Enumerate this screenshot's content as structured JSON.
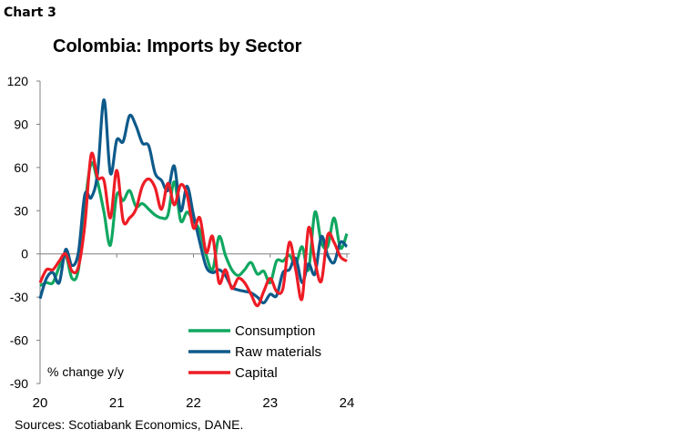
{
  "header": {
    "chart_label": "Chart 3"
  },
  "footer": {
    "source": "Sources: Scotiabank Economics, DANE."
  },
  "colors": {
    "Consumption": "#10a760",
    "Raw materials": "#0d5a8a",
    "Capital": "#ee1c25",
    "axis": "#808080"
  },
  "chart_data": {
    "type": "line",
    "title": "Colombia: Imports by Sector",
    "ylabel": "% change y/y",
    "xlabel": "",
    "ylim": [
      -90,
      120
    ],
    "yticks": [
      120,
      90,
      60,
      30,
      0,
      -30,
      -60,
      -90
    ],
    "xticks": [
      "20",
      "21",
      "22",
      "23",
      "24"
    ],
    "x_range": [
      "2020-01",
      "2024-01"
    ],
    "grid": false,
    "legend": "bottom-right",
    "x": [
      "2020-01",
      "2020-02",
      "2020-03",
      "2020-04",
      "2020-05",
      "2020-06",
      "2020-07",
      "2020-08",
      "2020-09",
      "2020-10",
      "2020-11",
      "2020-12",
      "2021-01",
      "2021-02",
      "2021-03",
      "2021-04",
      "2021-05",
      "2021-06",
      "2021-07",
      "2021-08",
      "2021-09",
      "2021-10",
      "2021-11",
      "2021-12",
      "2022-01",
      "2022-02",
      "2022-03",
      "2022-04",
      "2022-05",
      "2022-06",
      "2022-07",
      "2022-08",
      "2022-09",
      "2022-10",
      "2022-11",
      "2022-12",
      "2023-01",
      "2023-02",
      "2023-03",
      "2023-04",
      "2023-05",
      "2023-06",
      "2023-07",
      "2023-08",
      "2023-09",
      "2023-10",
      "2023-11",
      "2023-12",
      "2024-01"
    ],
    "series": [
      {
        "name": "Consumption",
        "values": [
          -22,
          -20,
          -20,
          -9,
          -1,
          -17,
          -11,
          33,
          63,
          50,
          29,
          6,
          41,
          37,
          44,
          33,
          35,
          31,
          27,
          25,
          27,
          50,
          23,
          29,
          23,
          16,
          -1,
          -11,
          12,
          -1,
          -11,
          -15,
          -11,
          -6,
          -14,
          -12,
          -20,
          -5,
          -5,
          -1,
          -7,
          5,
          -11,
          29,
          8,
          5,
          25,
          4,
          14
        ]
      },
      {
        "name": "Raw materials",
        "values": [
          -31,
          -17,
          -13,
          -20,
          3,
          -8,
          1,
          41,
          39,
          56,
          107,
          56,
          79,
          78,
          96,
          89,
          77,
          75,
          56,
          51,
          44,
          61,
          30,
          47,
          27,
          8,
          -9,
          -13,
          -11,
          -15,
          -23,
          -25,
          -26,
          -27,
          -30,
          -34,
          -28,
          -29,
          -13,
          -11,
          -3,
          -20,
          -7,
          -14,
          12,
          -1,
          -6,
          8,
          5
        ]
      },
      {
        "name": "Capital",
        "values": [
          -20,
          -11,
          -11,
          -5,
          0,
          -12,
          -9,
          20,
          69,
          53,
          51,
          25,
          58,
          23,
          25,
          31,
          47,
          52,
          46,
          31,
          49,
          34,
          48,
          41,
          18,
          25,
          1,
          12,
          -20,
          -11,
          -24,
          -17,
          -20,
          -28,
          -36,
          -26,
          -17,
          -26,
          -24,
          8,
          -11,
          -31,
          18,
          -5,
          -19,
          13,
          8,
          -2,
          -5
        ]
      }
    ]
  }
}
